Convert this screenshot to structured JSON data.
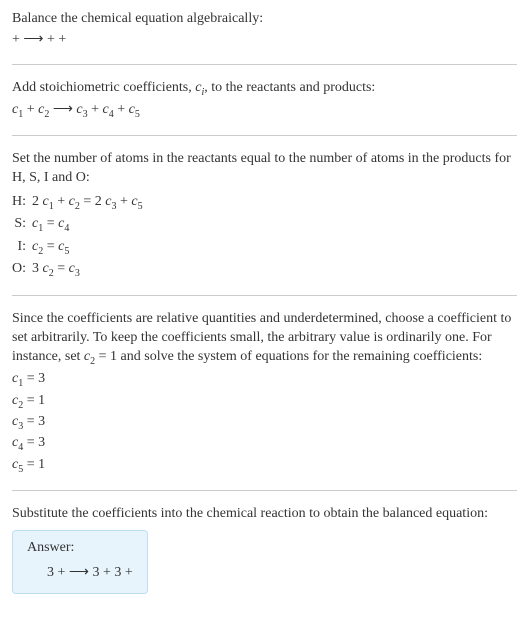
{
  "intro": {
    "line1": "Balance the chemical equation algebraically:",
    "line2_left": " + ",
    "line2_arrow": "⟶",
    "line2_right": "  +  + "
  },
  "addcoeff": {
    "line1_a": "Add stoichiometric coefficients, ",
    "line1_c": "c",
    "line1_i": "i",
    "line1_b": ", to the reactants and products:",
    "eq": {
      "c1": "c",
      "s1": "1",
      "plus1": "  + ",
      "c2": "c",
      "s2": "2",
      "arrow": " ⟶ ",
      "c3": "c",
      "s3": "3",
      "plus2": "  + ",
      "c4": "c",
      "s4": "4",
      "plus3": "  + ",
      "c5": "c",
      "s5": "5"
    }
  },
  "atoms": {
    "intro1": "Set the number of atoms in the reactants equal to the number of atoms in the products for H, S, I and O:",
    "rows": [
      {
        "el": "H:",
        "pre": "2 ",
        "c1": "c",
        "s1": "1",
        "mid1": " + ",
        "c2": "c",
        "s2": "2",
        "eq": " = 2 ",
        "c3": "c",
        "s3": "3",
        "mid2": " + ",
        "c4": "c",
        "s4": "5"
      },
      {
        "el": "S:",
        "c1": "c",
        "s1": "1",
        "eq": " = ",
        "c2": "c",
        "s2": "4"
      },
      {
        "el": "I:",
        "c1": "c",
        "s1": "2",
        "eq": " = ",
        "c2": "c",
        "s2": "5"
      },
      {
        "el": "O:",
        "pre": "3 ",
        "c1": "c",
        "s1": "2",
        "eq": " = ",
        "c2": "c",
        "s2": "3"
      }
    ]
  },
  "choose": {
    "para_a": "Since the coefficients are relative quantities and underdetermined, choose a coefficient to set arbitrarily. To keep the coefficients small, the arbitrary value is ordinarily one. For instance, set ",
    "cc": "c",
    "cs": "2",
    "para_b": " = 1 and solve the system of equations for the remaining coefficients:",
    "vals": [
      {
        "c": "c",
        "s": "1",
        "v": " = 3"
      },
      {
        "c": "c",
        "s": "2",
        "v": " = 1"
      },
      {
        "c": "c",
        "s": "3",
        "v": " = 3"
      },
      {
        "c": "c",
        "s": "4",
        "v": " = 3"
      },
      {
        "c": "c",
        "s": "5",
        "v": " = 1"
      }
    ]
  },
  "subst": {
    "line": "Substitute the coefficients into the chemical reaction to obtain the balanced equation:"
  },
  "answer": {
    "label": "Answer:",
    "eq_left": "3  +  ",
    "eq_arrow": "⟶",
    "eq_right": " 3  + 3  + "
  },
  "colors": {
    "text": "#333333",
    "rule": "#cccccc",
    "box_bg": "#e8f4fb",
    "box_border": "#bcdff2"
  }
}
